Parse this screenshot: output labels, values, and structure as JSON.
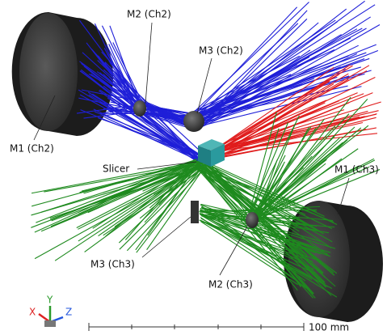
{
  "components": [
    "M2 (Ch2)",
    "M3 (Ch2)",
    "M1 (Ch2)",
    "Slicer",
    "M1 (Ch3)",
    "M3 (Ch3)",
    "M2 (Ch3)"
  ],
  "scale_bar": "100 mm",
  "axes": {
    "x": "X",
    "y": "Y",
    "z": "Z"
  }
}
